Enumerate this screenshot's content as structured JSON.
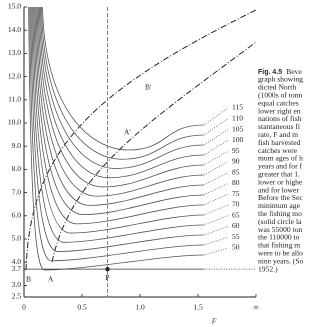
{
  "chart_data": {
    "type": "contour",
    "xlabel": "F",
    "xlim": [
      0,
      2
    ],
    "xticks": [
      0,
      0.5,
      {
        "value": 1,
        "label": "1.0"
      },
      1.5,
      {
        "value": 2,
        "label": "∞"
      }
    ],
    "ylim": [
      2.5,
      15
    ],
    "yticks": [
      2.5,
      {
        "value": 3,
        "label": "3.0"
      },
      3.7,
      {
        "value": 4,
        "label": "4.0"
      },
      {
        "value": 5,
        "label": "5.0"
      },
      {
        "value": 6,
        "label": "6.0"
      },
      {
        "value": 7,
        "label": "7.0"
      },
      {
        "value": 8,
        "label": "8.0"
      },
      {
        "value": 9,
        "label": "9.0"
      },
      {
        "value": 10,
        "label": "10.0"
      },
      {
        "value": 11,
        "label": "11.0"
      },
      {
        "value": 12,
        "label": "12.0"
      },
      {
        "value": 13,
        "label": "13.0"
      },
      {
        "value": 14,
        "label": "14.0"
      },
      {
        "value": 15,
        "label": "15.0"
      }
    ],
    "levels": [
      115,
      110,
      105,
      100,
      95,
      90,
      85,
      80,
      75,
      70,
      65,
      60,
      55,
      50
    ],
    "color": "#555555",
    "point": {
      "label": "P",
      "x": 0.72,
      "y": 3.7
    },
    "annotations": [
      "B'",
      "A'",
      "B",
      "A"
    ]
  },
  "caption": {
    "label": "Fig. 4.5",
    "lines": [
      "Beve",
      "graph showing",
      "dicted North",
      "(1000s of tonn",
      "equal catches",
      "lower right en",
      "nations of fish",
      "stantaneous fi",
      "rate, F and m",
      "fish harvested",
      "catches were",
      "mum ages of h",
      "years and for f",
      "greater that 1.",
      "lower or highe",
      "and for lower",
      "Before the Sec",
      "minimum age",
      "the fishing mo",
      "(solid circle la",
      "was 55000 ton",
      "the 110000 to",
      "that fishing m",
      "were to be allo",
      "nine years. (So",
      "1952.)"
    ]
  }
}
